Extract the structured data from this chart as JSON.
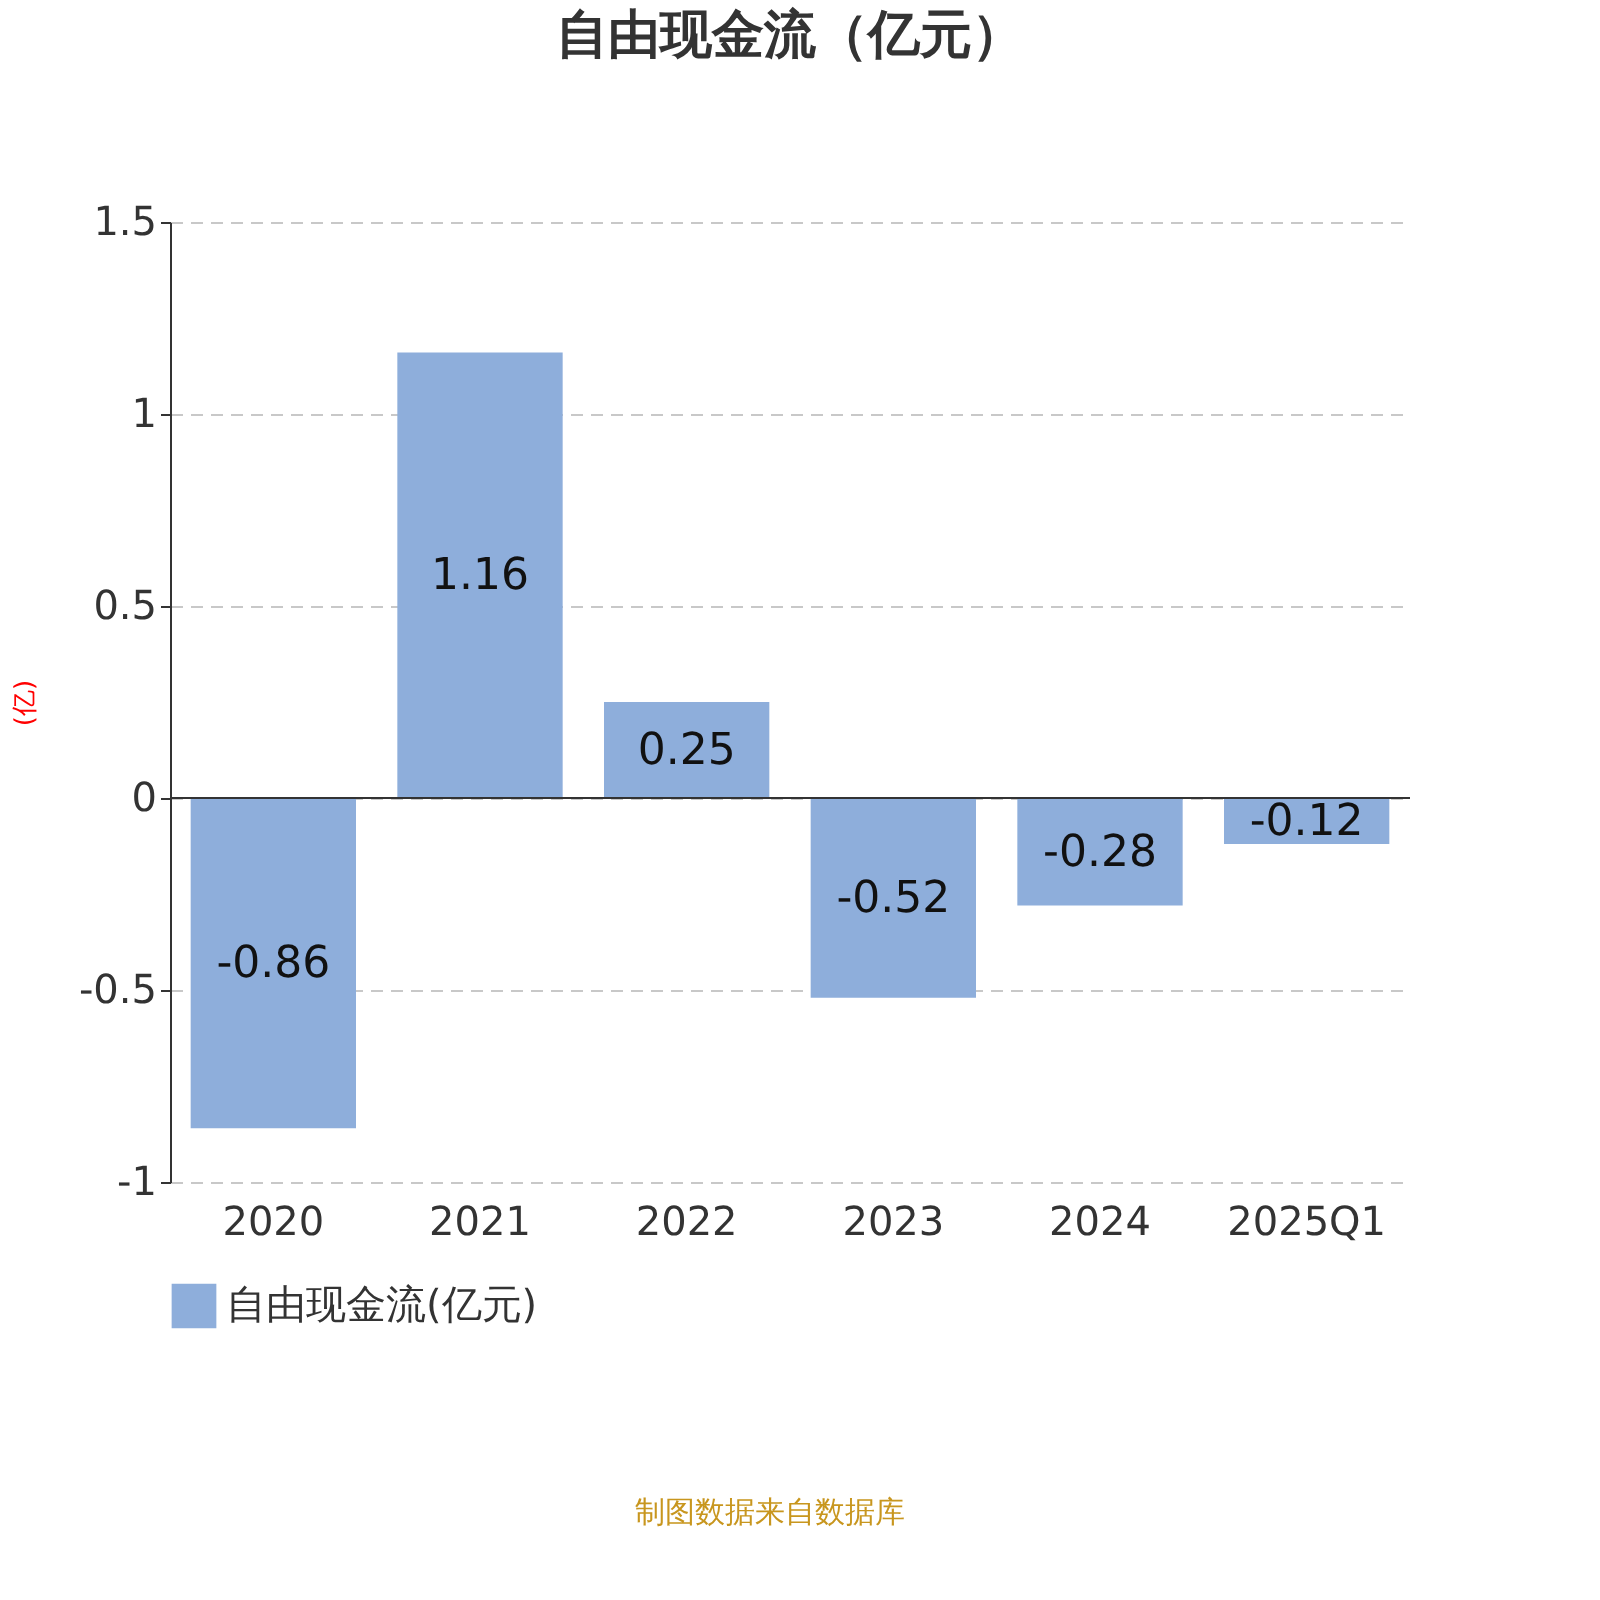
{
  "chart_data": {
    "type": "bar",
    "title": "自由现金流（亿元）",
    "ylabel": "(亿)",
    "categories": [
      "2020",
      "2021",
      "2022",
      "2023",
      "2024",
      "2025Q1"
    ],
    "series": [
      {
        "name": "自由现金流(亿元)",
        "color": "#8eaedb",
        "values": [
          -0.86,
          1.16,
          0.25,
          -0.52,
          -0.28,
          -0.12
        ]
      }
    ],
    "ylim": [
      -1,
      1.5
    ],
    "yticks": [
      -1,
      -0.5,
      0,
      0.5,
      1,
      1.5
    ],
    "grid": "y",
    "legend": "bottom",
    "data_labels": true,
    "annotations": [
      "制图数据来自数据库"
    ]
  }
}
